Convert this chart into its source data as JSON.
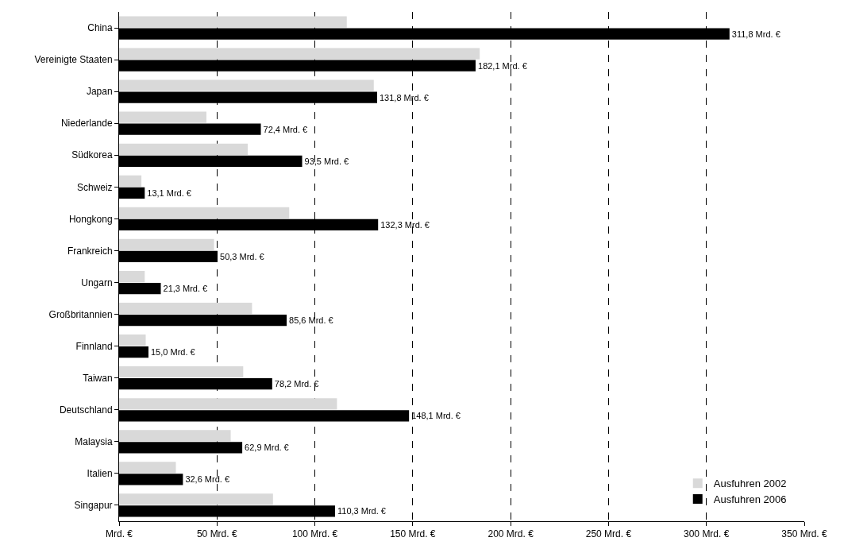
{
  "chart_data": {
    "type": "bar",
    "orientation": "horizontal",
    "categories": [
      "China",
      "Vereinigte Staaten",
      "Japan",
      "Niederlande",
      "Südkorea",
      "Schweiz",
      "Hongkong",
      "Frankreich",
      "Ungarn",
      "Großbritannien",
      "Finnland",
      "Taiwan",
      "Deutschland",
      "Malaysia",
      "Italien",
      "Singapur"
    ],
    "series": [
      {
        "name": "Ausfuhren 2002",
        "color": "#d9d9d9",
        "values": [
          116.3,
          184.2,
          130.1,
          44.6,
          65.7,
          11.4,
          86.9,
          48.5,
          13.1,
          67.9,
          13.6,
          63.4,
          111.3,
          57.0,
          29.0,
          78.6
        ]
      },
      {
        "name": "Ausfuhren 2006",
        "color": "#000000",
        "values": [
          311.8,
          182.1,
          131.8,
          72.4,
          93.5,
          13.1,
          132.3,
          50.3,
          21.3,
          85.6,
          15.0,
          78.2,
          148.1,
          62.9,
          32.6,
          110.3
        ],
        "value_labels": [
          "311,8 Mrd. €",
          "182,1 Mrd. €",
          "131,8 Mrd. €",
          "72,4 Mrd. €",
          "93,5 Mrd. €",
          "13,1 Mrd. €",
          "132,3 Mrd. €",
          "50,3 Mrd. €",
          "21,3 Mrd. €",
          "85,6 Mrd. €",
          "15,0 Mrd. €",
          "78,2 Mrd. €",
          "148,1 Mrd. €",
          "62,9 Mrd. €",
          "32,6 Mrd. €",
          "110,3 Mrd. €"
        ]
      }
    ],
    "xlim": [
      0,
      350
    ],
    "xticks": [
      {
        "value": 0,
        "label": "Mrd. €"
      },
      {
        "value": 50,
        "label": "50 Mrd. €"
      },
      {
        "value": 100,
        "label": "100 Mrd. €"
      },
      {
        "value": 150,
        "label": "150 Mrd. €"
      },
      {
        "value": 200,
        "label": "200 Mrd. €"
      },
      {
        "value": 250,
        "label": "250 Mrd. €"
      },
      {
        "value": 300,
        "label": "300 Mrd. €"
      },
      {
        "value": 350,
        "label": "350 Mrd. €"
      }
    ],
    "grid": "x",
    "legend": "bottom right"
  }
}
